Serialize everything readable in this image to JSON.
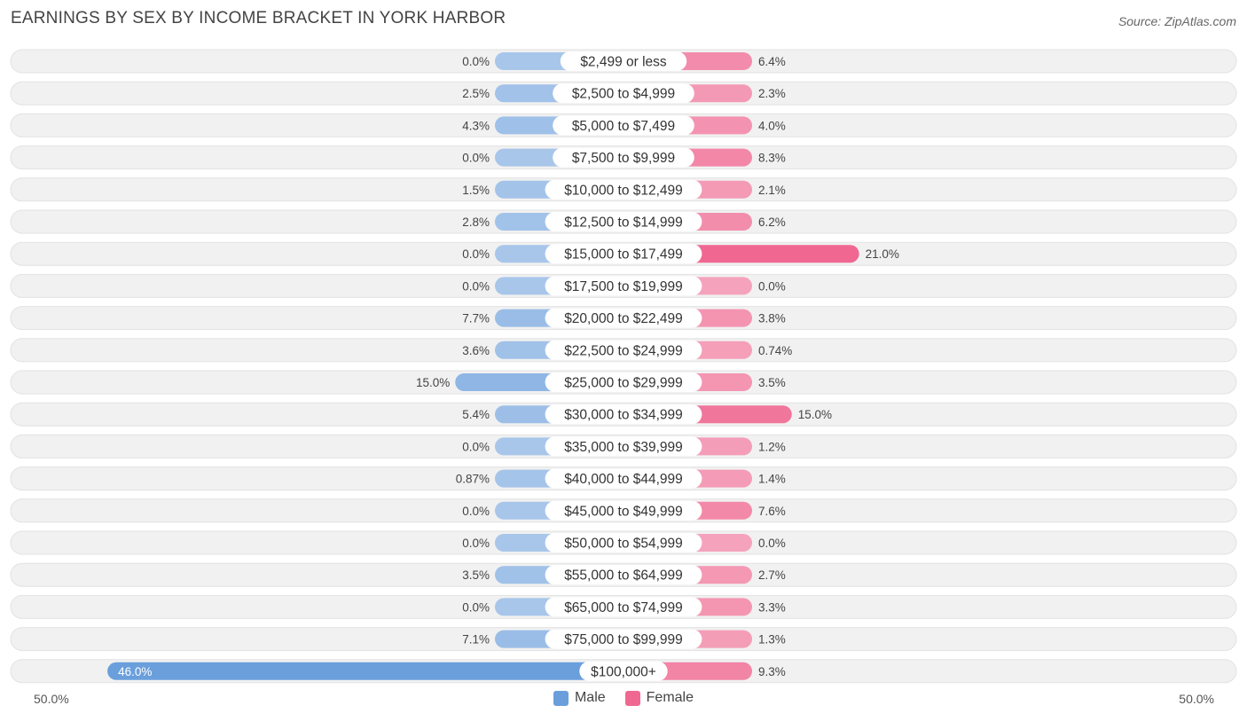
{
  "chart_data": {
    "type": "bar",
    "orientation": "horizontal-diverging",
    "title": "EARNINGS BY SEX BY INCOME BRACKET IN YORK HARBOR",
    "source": "Source: ZipAtlas.com",
    "axis_min_label": "50.0%",
    "axis_max_label": "50.0%",
    "xlim": [
      -50,
      50
    ],
    "categories": [
      "$2,499 or less",
      "$2,500 to $4,999",
      "$5,000 to $7,499",
      "$7,500 to $9,999",
      "$10,000 to $12,499",
      "$12,500 to $14,999",
      "$15,000 to $17,499",
      "$17,500 to $19,999",
      "$20,000 to $22,499",
      "$22,500 to $24,999",
      "$25,000 to $29,999",
      "$30,000 to $34,999",
      "$35,000 to $39,999",
      "$40,000 to $44,999",
      "$45,000 to $49,999",
      "$50,000 to $54,999",
      "$55,000 to $64,999",
      "$65,000 to $74,999",
      "$75,000 to $99,999",
      "$100,000+"
    ],
    "series": [
      {
        "name": "Male",
        "color": "#6a9fdc",
        "light_color": "#a8c6ea",
        "values": [
          0.0,
          2.5,
          4.3,
          0.0,
          1.5,
          2.8,
          0.0,
          0.0,
          7.7,
          3.6,
          15.0,
          5.4,
          0.0,
          0.87,
          0.0,
          0.0,
          3.5,
          0.0,
          7.1,
          46.0
        ],
        "labels": [
          "0.0%",
          "2.5%",
          "4.3%",
          "0.0%",
          "1.5%",
          "2.8%",
          "0.0%",
          "0.0%",
          "7.7%",
          "3.6%",
          "15.0%",
          "5.4%",
          "0.0%",
          "0.87%",
          "0.0%",
          "0.0%",
          "3.5%",
          "0.0%",
          "7.1%",
          "46.0%"
        ]
      },
      {
        "name": "Female",
        "color": "#f06892",
        "light_color": "#f5a3bc",
        "values": [
          6.4,
          2.3,
          4.0,
          8.3,
          2.1,
          6.2,
          21.0,
          0.0,
          3.8,
          0.74,
          3.5,
          15.0,
          1.2,
          1.4,
          7.6,
          0.0,
          2.7,
          3.3,
          1.3,
          9.3
        ],
        "labels": [
          "6.4%",
          "2.3%",
          "4.0%",
          "8.3%",
          "2.1%",
          "6.2%",
          "21.0%",
          "0.0%",
          "3.8%",
          "0.74%",
          "3.5%",
          "15.0%",
          "1.2%",
          "1.4%",
          "7.6%",
          "0.0%",
          "2.7%",
          "3.3%",
          "1.3%",
          "9.3%"
        ]
      }
    ],
    "legend": [
      "Male",
      "Female"
    ]
  }
}
